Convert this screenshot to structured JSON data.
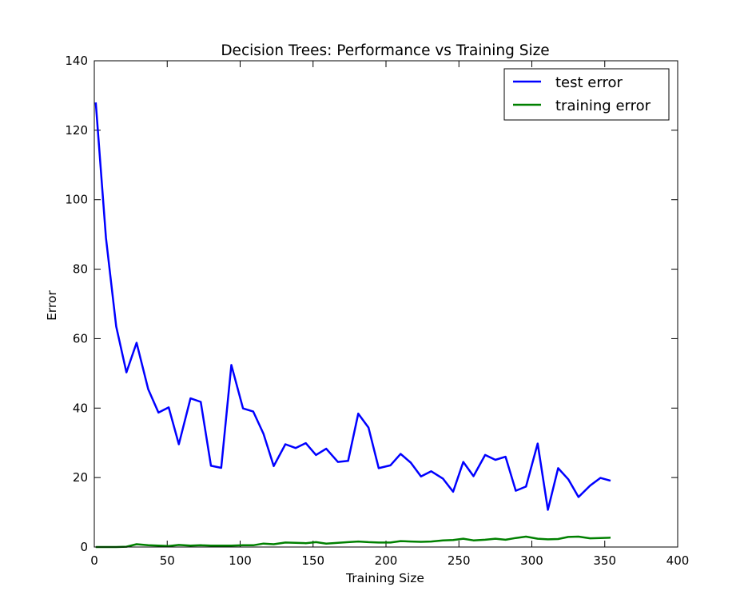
{
  "chart_data": {
    "type": "line",
    "title": "Decision Trees: Performance vs Training Size",
    "xlabel": "Training Size",
    "ylabel": "Error",
    "xlim": [
      0,
      400
    ],
    "ylim": [
      0,
      140
    ],
    "xticks": [
      0,
      50,
      100,
      150,
      200,
      250,
      300,
      350,
      400
    ],
    "yticks": [
      0,
      20,
      40,
      60,
      80,
      100,
      120,
      140
    ],
    "grid": false,
    "legend_position": "top-right",
    "x": [
      1,
      8,
      15,
      22,
      29,
      37,
      44,
      51,
      58,
      66,
      73,
      80,
      87,
      94,
      102,
      109,
      116,
      123,
      131,
      138,
      145,
      152,
      159,
      167,
      174,
      181,
      188,
      195,
      203,
      210,
      217,
      224,
      231,
      239,
      246,
      253,
      260,
      268,
      275,
      282,
      289,
      296,
      304,
      311,
      318,
      325,
      332,
      340,
      347,
      354
    ],
    "series": [
      {
        "name": "test error",
        "color": "#0000ff",
        "values": [
          128,
          89,
          63.5,
          50.3,
          58.8,
          45.4,
          38.7,
          40.2,
          29.6,
          42.8,
          41.8,
          23.4,
          22.8,
          52.4,
          39.9,
          39.0,
          32.6,
          23.3,
          29.6,
          28.5,
          29.9,
          26.5,
          28.3,
          24.5,
          24.8,
          38.4,
          34.4,
          22.7,
          23.5,
          26.8,
          24.3,
          20.3,
          21.8,
          19.7,
          15.9,
          24.5,
          20.4,
          26.5,
          25.1,
          26.0,
          16.2,
          17.4,
          29.8,
          10.7,
          22.7,
          19.5,
          14.4,
          17.7,
          19.9,
          19.1
        ]
      },
      {
        "name": "training error",
        "color": "#008000",
        "values": [
          0,
          0,
          0,
          0.1,
          0.8,
          0.5,
          0.4,
          0.3,
          0.6,
          0.4,
          0.5,
          0.4,
          0.4,
          0.4,
          0.5,
          0.5,
          1.0,
          0.8,
          1.3,
          1.2,
          1.1,
          1.4,
          1.0,
          1.2,
          1.4,
          1.6,
          1.4,
          1.3,
          1.3,
          1.7,
          1.6,
          1.5,
          1.6,
          1.9,
          2.0,
          2.4,
          1.9,
          2.1,
          2.4,
          2.1,
          2.6,
          3.0,
          2.4,
          2.2,
          2.3,
          2.9,
          3.0,
          2.5,
          2.6,
          2.7
        ]
      }
    ]
  }
}
